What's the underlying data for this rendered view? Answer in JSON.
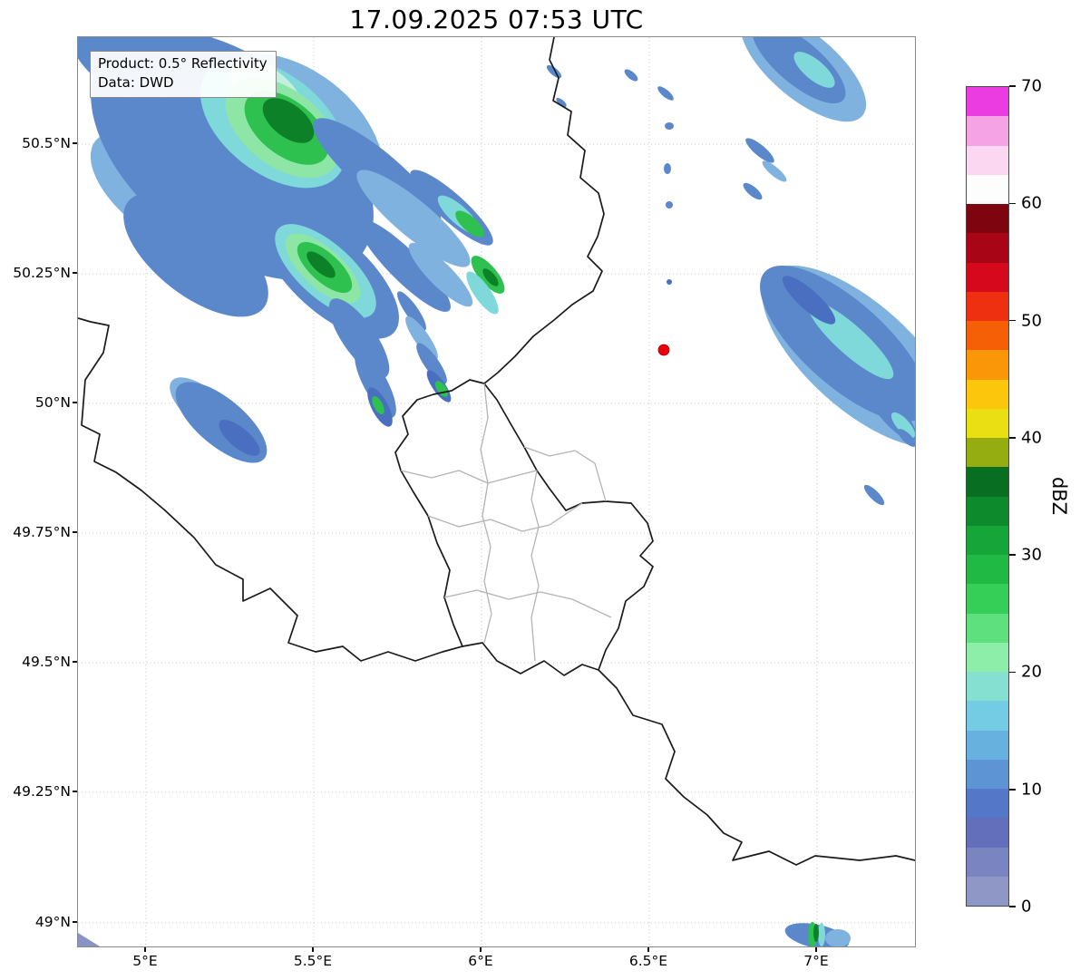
{
  "title": "17.09.2025 07:53 UTC",
  "info_box": {
    "product_line": "Product: 0.5° Reflectivity",
    "data_line": "Data: DWD"
  },
  "axes": {
    "y_ticks": [
      "50.5°N",
      "50.25°N",
      "50°N",
      "49.75°N",
      "49.5°N",
      "49.25°N",
      "49°N"
    ],
    "x_ticks": [
      "5°E",
      "5.5°E",
      "6°E",
      "6.5°E",
      "7°E"
    ]
  },
  "colorbar": {
    "label": "dBZ",
    "min": 0,
    "max": 70,
    "ticks": [
      0,
      10,
      20,
      30,
      40,
      50,
      60,
      70
    ],
    "colors": [
      "#8f97c6",
      "#7a84c0",
      "#636fba",
      "#5577c8",
      "#5c94d4",
      "#67b1de",
      "#74cce4",
      "#85e0d2",
      "#8ceea8",
      "#5fe07e",
      "#35cf58",
      "#1fb943",
      "#16a538",
      "#0d8a2c",
      "#086e22",
      "#95ad10",
      "#eadf12",
      "#fcc60c",
      "#f99708",
      "#f55f05",
      "#ee2f10",
      "#d6081b",
      "#a80616",
      "#7e040f",
      "#fdfdfd",
      "#fbd7f1",
      "#f6a3e6",
      "#ea3ce0"
    ]
  },
  "marker": {
    "label": "radar-site",
    "color": "#e8000b"
  },
  "map": {
    "country_border_color": "#1a1a1a",
    "region_border_color": "#b3b3b3",
    "grid_color": "#c9c9c9"
  }
}
